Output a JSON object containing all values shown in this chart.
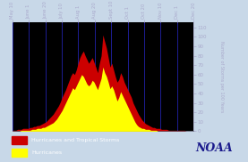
{
  "background_color": "#000000",
  "outer_bg": "#c8d8e8",
  "xlabel_ticks": [
    "May 10",
    "June 1",
    "June 20",
    "July 10",
    "Aug 1",
    "Aug 20",
    "Sept 10",
    "Oct 1",
    "Oct 20",
    "Nov 10",
    "Dec 1",
    "Dec 20"
  ],
  "ylabel": "Number of Storms per 100 Years",
  "ylim": [
    0,
    115
  ],
  "yticks": [
    0,
    10,
    20,
    30,
    40,
    50,
    60,
    70,
    80,
    90,
    100,
    110
  ],
  "grid_color": "#2222aa",
  "legend_bg": "#000000",
  "legend_text_color": "#ffffff",
  "noaa_text_color": "#1a1a8c",
  "red_color": "#cc0000",
  "yellow_color": "#ffff00",
  "red_data": [
    1,
    1,
    1,
    2,
    2,
    2,
    3,
    3,
    3,
    3,
    4,
    4,
    5,
    5,
    6,
    6,
    7,
    8,
    9,
    10,
    12,
    14,
    16,
    18,
    21,
    24,
    27,
    31,
    36,
    40,
    44,
    49,
    54,
    59,
    62,
    60,
    65,
    72,
    78,
    82,
    85,
    80,
    76,
    72,
    75,
    78,
    73,
    68,
    62,
    72,
    80,
    102,
    95,
    88,
    78,
    68,
    72,
    65,
    58,
    52,
    55,
    62,
    58,
    52,
    48,
    44,
    40,
    36,
    30,
    26,
    22,
    18,
    15,
    12,
    10,
    8,
    7,
    6,
    5,
    4,
    4,
    3,
    3,
    3,
    2,
    2,
    2,
    2,
    1,
    1,
    1,
    1,
    1,
    1,
    1,
    1,
    1,
    1,
    0,
    0,
    0,
    0,
    0
  ],
  "yellow_data": [
    0,
    0,
    0,
    0,
    0,
    1,
    1,
    1,
    1,
    1,
    1,
    2,
    2,
    2,
    3,
    3,
    3,
    4,
    4,
    5,
    6,
    7,
    8,
    9,
    11,
    13,
    16,
    19,
    22,
    26,
    30,
    34,
    38,
    42,
    46,
    44,
    48,
    52,
    56,
    60,
    58,
    54,
    50,
    48,
    50,
    54,
    52,
    48,
    44,
    50,
    56,
    68,
    62,
    58,
    52,
    45,
    48,
    44,
    38,
    32,
    36,
    42,
    38,
    34,
    30,
    26,
    22,
    18,
    14,
    10,
    7,
    5,
    4,
    3,
    3,
    2,
    2,
    2,
    1,
    1,
    1,
    1,
    0,
    0,
    0,
    0,
    0,
    0,
    0,
    0,
    0,
    0,
    0,
    0,
    0,
    0,
    0,
    0,
    0,
    0,
    0,
    0,
    0
  ]
}
